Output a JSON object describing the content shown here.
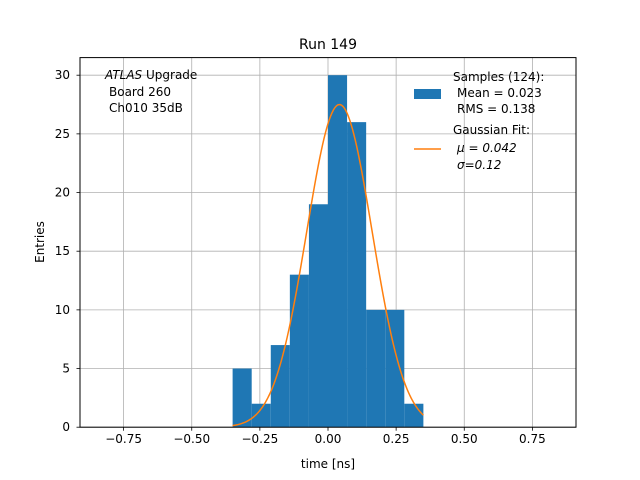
{
  "chart_data": {
    "type": "bar",
    "title": "Run 149",
    "xlabel": "time [ns]",
    "ylabel": "Entries",
    "xlim": [
      -0.91,
      0.91
    ],
    "ylim": [
      0,
      31.5
    ],
    "xticks": [
      -0.75,
      -0.5,
      -0.25,
      0.0,
      0.25,
      0.5,
      0.75
    ],
    "xtick_labels": [
      "−0.75",
      "−0.50",
      "−0.25",
      "0.00",
      "0.25",
      "0.50",
      "0.75"
    ],
    "yticks": [
      0,
      5,
      10,
      15,
      20,
      25,
      30
    ],
    "ytick_labels": [
      "0",
      "5",
      "10",
      "15",
      "20",
      "25",
      "30"
    ],
    "grid": true,
    "legend_position": "top-right",
    "histogram": {
      "name": "Samples (124):",
      "color": "#1f77b4",
      "bin_edges": [
        -0.35,
        -0.28,
        -0.21,
        -0.14,
        -0.07,
        0.0,
        0.07,
        0.14,
        0.21,
        0.28,
        0.35
      ],
      "counts": [
        5,
        2,
        7,
        13,
        19,
        30,
        26,
        10,
        10,
        2
      ],
      "stats": [
        "Mean = 0.023",
        "RMS = 0.138"
      ]
    },
    "fit": {
      "name": "Gaussian Fit:",
      "color": "#ff7f0e",
      "amplitude": 27.5,
      "mu": 0.042,
      "sigma": 0.12,
      "x_range": [
        -0.35,
        0.35
      ],
      "stats": [
        "μ = 0.042",
        "σ=0.12"
      ]
    },
    "annotation": {
      "experiment": "ATLAS",
      "experiment_suffix": " Upgrade",
      "lines": [
        "Board 260",
        "Ch010 35dB"
      ]
    }
  }
}
